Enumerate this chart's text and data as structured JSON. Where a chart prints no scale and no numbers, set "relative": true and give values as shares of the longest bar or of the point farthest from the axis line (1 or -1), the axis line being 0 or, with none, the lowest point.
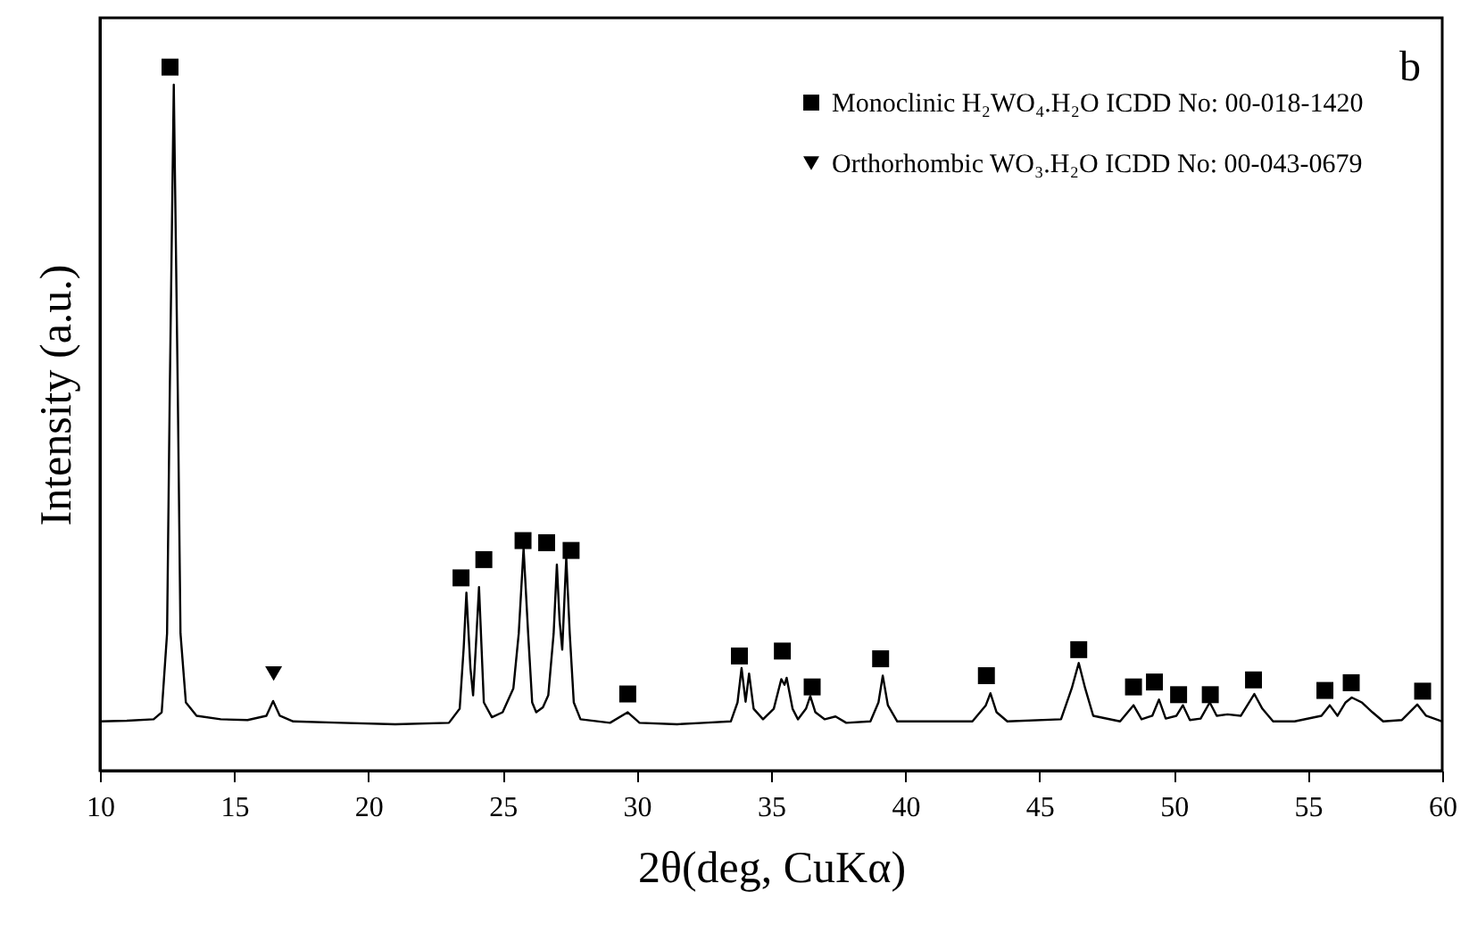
{
  "chart_data": {
    "type": "line",
    "xlabel": "2θ(deg, CuKα)",
    "ylabel": "Intensity (a.u.)",
    "relative": true,
    "xlim": [
      10,
      60
    ],
    "xticks": [
      10,
      15,
      20,
      25,
      30,
      35,
      40,
      45,
      50,
      55,
      60
    ],
    "legend": "top right",
    "annotations": [
      "b"
    ],
    "series": [
      {
        "color": "#000000",
        "marker": "none",
        "x": [
          10.0,
          11.0,
          12.0,
          12.3,
          12.5,
          12.6,
          12.75,
          12.9,
          13.0,
          13.2,
          13.6,
          14.5,
          15.5,
          16.2,
          16.45,
          16.7,
          17.2,
          19,
          21,
          23.0,
          23.4,
          23.55,
          23.65,
          23.8,
          23.9,
          24.0,
          24.12,
          24.3,
          24.6,
          25.0,
          25.4,
          25.6,
          25.78,
          25.95,
          26.1,
          26.25,
          26.5,
          26.7,
          26.9,
          27.02,
          27.12,
          27.22,
          27.37,
          27.5,
          27.65,
          27.9,
          29.0,
          29.66,
          30.1,
          31.5,
          32.5,
          33.5,
          33.75,
          33.9,
          34.05,
          34.18,
          34.35,
          34.7,
          35.1,
          35.38,
          35.5,
          35.58,
          35.8,
          36.0,
          36.3,
          36.46,
          36.65,
          37.0,
          37.4,
          37.8,
          38.7,
          39.0,
          39.16,
          39.35,
          39.7,
          42.5,
          43.0,
          43.17,
          43.4,
          43.8,
          45.8,
          46.2,
          46.46,
          46.7,
          47.0,
          48.0,
          48.5,
          48.8,
          49.2,
          49.45,
          49.7,
          50.1,
          50.34,
          50.6,
          51.0,
          51.34,
          51.6,
          52.0,
          52.5,
          53.0,
          53.3,
          53.7,
          54.5,
          55.5,
          55.81,
          56.1,
          56.4,
          56.63,
          57.0,
          57.4,
          57.8,
          58.5,
          59.07,
          59.4,
          60
        ],
        "values": [
          0.07,
          0.071,
          0.073,
          0.083,
          0.195,
          0.536,
          0.975,
          0.536,
          0.195,
          0.097,
          0.078,
          0.073,
          0.072,
          0.078,
          0.099,
          0.078,
          0.07,
          0.068,
          0.066,
          0.068,
          0.088,
          0.175,
          0.253,
          0.146,
          0.107,
          0.175,
          0.261,
          0.097,
          0.076,
          0.083,
          0.117,
          0.195,
          0.316,
          0.195,
          0.097,
          0.083,
          0.09,
          0.107,
          0.195,
          0.293,
          0.214,
          0.172,
          0.303,
          0.195,
          0.097,
          0.073,
          0.068,
          0.083,
          0.068,
          0.066,
          0.068,
          0.07,
          0.097,
          0.146,
          0.098,
          0.138,
          0.088,
          0.073,
          0.088,
          0.13,
          0.122,
          0.132,
          0.088,
          0.073,
          0.088,
          0.106,
          0.083,
          0.073,
          0.077,
          0.068,
          0.07,
          0.097,
          0.135,
          0.093,
          0.07,
          0.07,
          0.093,
          0.11,
          0.083,
          0.07,
          0.073,
          0.117,
          0.153,
          0.117,
          0.078,
          0.07,
          0.093,
          0.073,
          0.078,
          0.101,
          0.074,
          0.078,
          0.093,
          0.072,
          0.074,
          0.097,
          0.078,
          0.08,
          0.078,
          0.109,
          0.088,
          0.07,
          0.07,
          0.078,
          0.093,
          0.078,
          0.097,
          0.104,
          0.097,
          0.083,
          0.07,
          0.072,
          0.094,
          0.078,
          0.07
        ]
      },
      {
        "type": "scatter",
        "name": "Monoclinic H₂WO₄.H₂O ICDD No: 00-018-1420",
        "color": "#000000",
        "marker": "square",
        "x": [
          12.61,
          23.45,
          24.3,
          25.76,
          26.64,
          27.55,
          29.66,
          33.82,
          35.42,
          36.53,
          39.08,
          43.02,
          46.46,
          48.5,
          49.28,
          50.18,
          51.36,
          52.97,
          55.63,
          56.61,
          59.27
        ],
        "values": [
          1,
          0.274,
          0.3,
          0.327,
          0.324,
          0.313,
          0.109,
          0.163,
          0.17,
          0.119,
          0.159,
          0.135,
          0.172,
          0.119,
          0.126,
          0.108,
          0.108,
          0.129,
          0.114,
          0.125,
          0.113
        ]
      },
      {
        "type": "scatter",
        "name": "Orthorhombic  WO₃.H₂O ICDD No: 00-043-0679",
        "color": "#000000",
        "marker": "triangle",
        "x": [
          16.47
        ],
        "values": [
          0.138
        ]
      }
    ]
  }
}
